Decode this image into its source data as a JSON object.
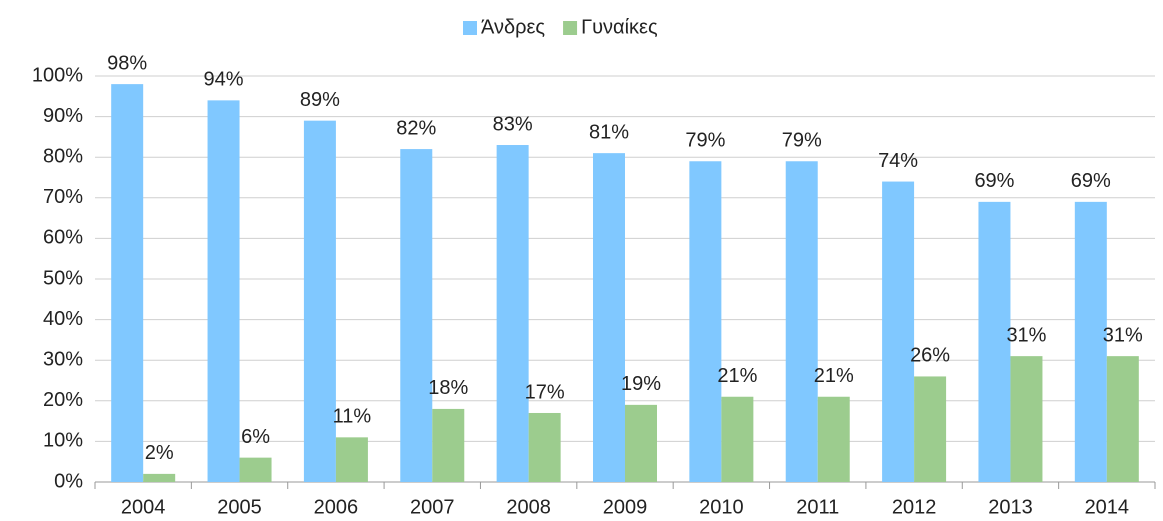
{
  "chart_data": {
    "type": "bar",
    "legend": "top",
    "grid": true,
    "categories": [
      "2004",
      "2005",
      "2006",
      "2007",
      "2008",
      "2009",
      "2010",
      "2011",
      "2012",
      "2013",
      "2014"
    ],
    "series": [
      {
        "name": "Άνδρες",
        "color": "#80c8ff",
        "values": [
          98,
          94,
          89,
          82,
          83,
          81,
          79,
          79,
          74,
          69,
          69
        ],
        "value_labels": [
          "98%",
          "94%",
          "89%",
          "82%",
          "83%",
          "81%",
          "79%",
          "79%",
          "74%",
          "69%",
          "69%"
        ]
      },
      {
        "name": "Γυναίκες",
        "color": "#9ccc8e",
        "values": [
          2,
          6,
          11,
          18,
          17,
          19,
          21,
          21,
          26,
          31,
          31
        ],
        "value_labels": [
          "2%",
          "6%",
          "11%",
          "18%",
          "17%",
          "19%",
          "21%",
          "21%",
          "26%",
          "31%",
          "31%"
        ]
      }
    ],
    "ylim": [
      0,
      100
    ],
    "yticks": [
      {
        "value": 0,
        "label": "0%"
      },
      {
        "value": 10,
        "label": "10%"
      },
      {
        "value": 20,
        "label": "20%"
      },
      {
        "value": 30,
        "label": "30%"
      },
      {
        "value": 40,
        "label": "40%"
      },
      {
        "value": 50,
        "label": "50%"
      },
      {
        "value": 60,
        "label": "60%"
      },
      {
        "value": 70,
        "label": "70%"
      },
      {
        "value": 80,
        "label": "80%"
      },
      {
        "value": 90,
        "label": "90%"
      },
      {
        "value": 100,
        "label": "100%"
      }
    ]
  }
}
